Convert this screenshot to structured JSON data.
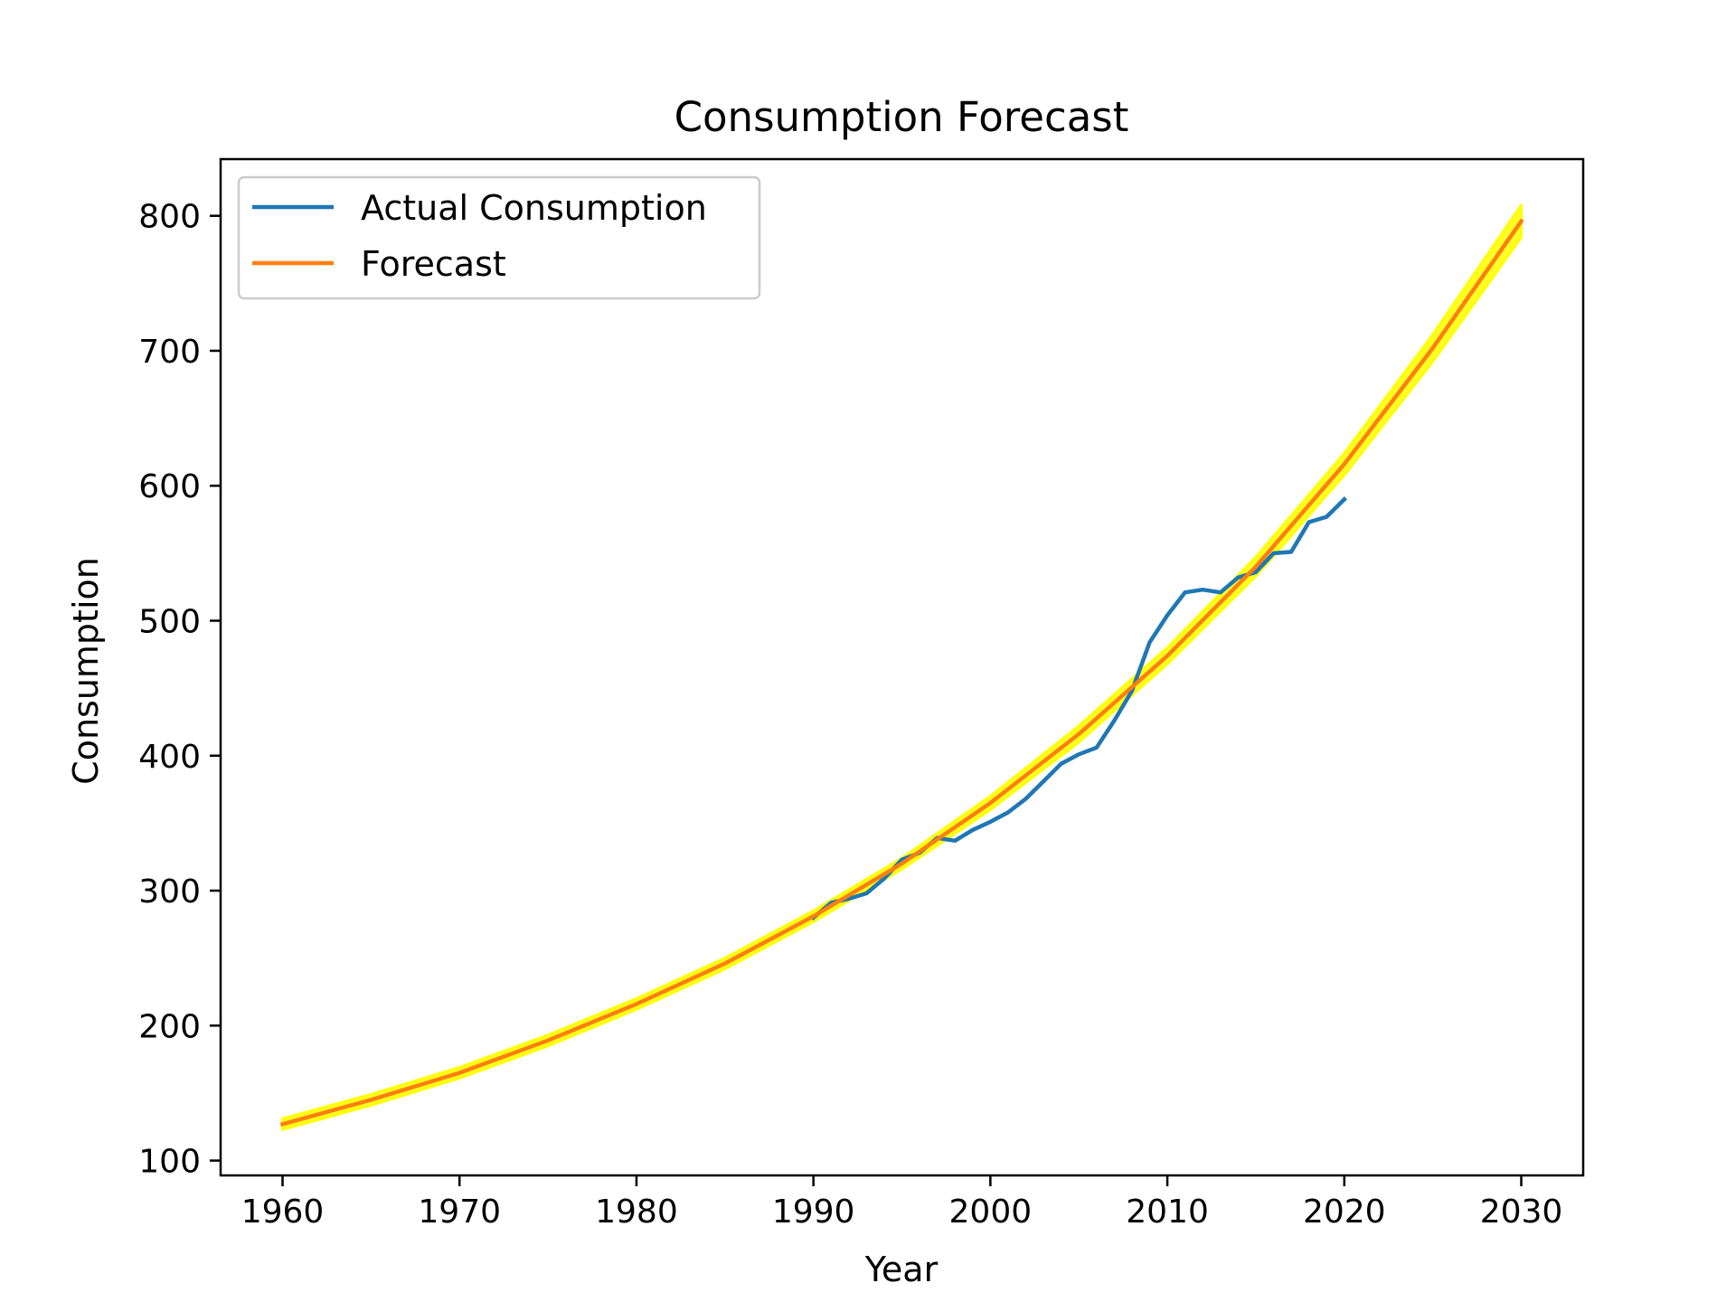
{
  "chart_data": {
    "type": "line",
    "title": "Consumption Forecast",
    "xlabel": "Year",
    "ylabel": "Consumption",
    "xlim": [
      1956.5,
      2033.5
    ],
    "ylim": [
      89,
      842
    ],
    "xticks": [
      1960,
      1970,
      1980,
      1990,
      2000,
      2010,
      2020,
      2030
    ],
    "yticks": [
      100,
      200,
      300,
      400,
      500,
      600,
      700,
      800
    ],
    "grid": false,
    "legend": {
      "position": "top-left"
    },
    "series": [
      {
        "name": "Actual Consumption",
        "color": "#1f77b4",
        "x": [
          1990,
          1991,
          1992,
          1993,
          1994,
          1995,
          1996,
          1997,
          1998,
          1999,
          2000,
          2001,
          2002,
          2003,
          2004,
          2005,
          2006,
          2007,
          2008,
          2009,
          2010,
          2011,
          2012,
          2013,
          2014,
          2015,
          2016,
          2017,
          2018,
          2019,
          2020
        ],
        "y": [
          280,
          291,
          294,
          298,
          309,
          323,
          328,
          339,
          337,
          345,
          351,
          358,
          368,
          381,
          394,
          401,
          406,
          426,
          448,
          484,
          504,
          521,
          523,
          521,
          532,
          536,
          550,
          551,
          573,
          577,
          590
        ]
      },
      {
        "name": "Forecast",
        "color": "#ff7f0e",
        "band_color": "#ffff00",
        "x": [
          1960,
          1965,
          1970,
          1975,
          1980,
          1985,
          1990,
          1995,
          2000,
          2005,
          2010,
          2015,
          2020,
          2025,
          2030
        ],
        "y": [
          127,
          145,
          165,
          189,
          216,
          246,
          281,
          320,
          365,
          416,
          474,
          540,
          616,
          702,
          796
        ],
        "band_halfwidth": [
          4,
          4,
          4,
          4,
          4,
          4,
          4,
          4,
          5,
          6,
          6,
          7,
          8,
          10,
          12
        ]
      }
    ]
  }
}
